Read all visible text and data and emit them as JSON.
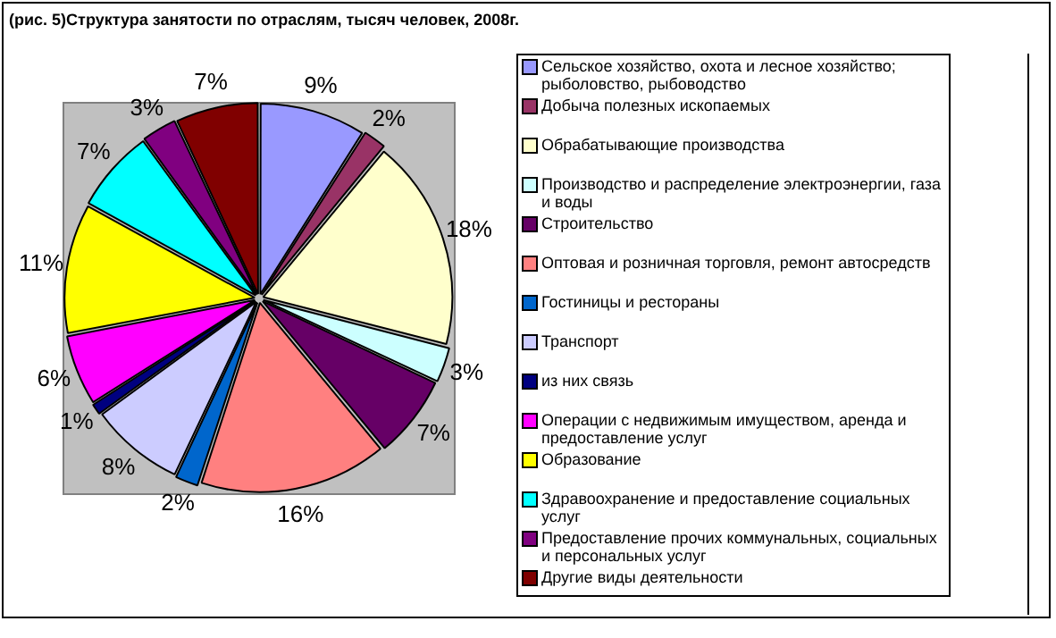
{
  "chart_data": {
    "type": "pie",
    "title": "(рис. 5)Структура занятости по отраслям, тысяч человек, 2008г.",
    "categories": [
      "Сельское хозяйство, охота и лесное хозяйство; рыболовство, рыбоводство",
      "Добыча полезных ископаемых",
      "Обрабатывающие производства",
      "Производство и распределение электроэнергии, газа и воды",
      "Строительство",
      "Оптовая и розничная торговля, ремонт автосредств",
      "Гостиницы и рестораны",
      "Транспорт",
      "из них связь",
      "Операции с недвижимым имуществом, аренда и предоставление услуг",
      "Образование",
      "Здравоохранение и предоставление социальных услуг",
      "Предоставление прочих коммунальных, социальных и персональных услуг",
      "Другие виды деятельности"
    ],
    "values": [
      9,
      2,
      18,
      3,
      7,
      16,
      2,
      8,
      1,
      6,
      11,
      7,
      3,
      7
    ],
    "colors": [
      "#9999ff",
      "#993366",
      "#ffffcc",
      "#ccffff",
      "#660066",
      "#ff8080",
      "#0066cc",
      "#ccccff",
      "#000080",
      "#ff00ff",
      "#ffff00",
      "#00ffff",
      "#800080",
      "#800000"
    ],
    "value_labels": [
      "9%",
      "2%",
      "18%",
      "3%",
      "7%",
      "16%",
      "2%",
      "8%",
      "1%",
      "6%",
      "11%",
      "7%",
      "3%",
      "7%"
    ],
    "legend": "right"
  }
}
